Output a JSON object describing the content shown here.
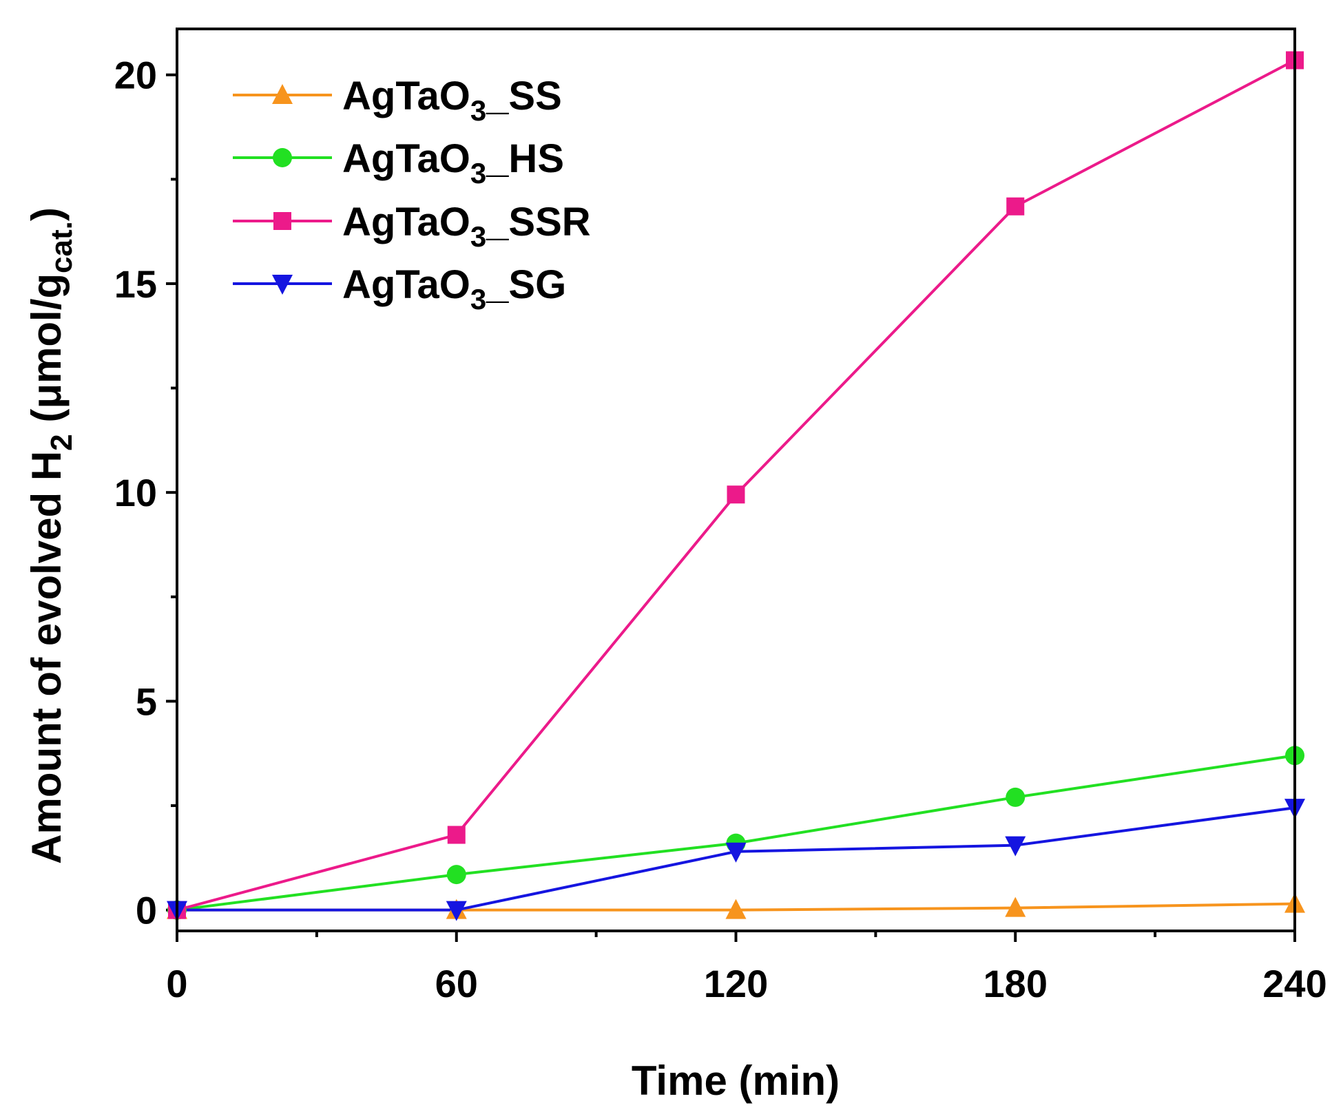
{
  "chart_data": {
    "type": "line",
    "title": "",
    "xlabel": "Time (min)",
    "ylabel": {
      "main": "Amount of evolved H",
      "main_sub": "2",
      "unit_open": " (μmol/g",
      "unit_sub": "cat.",
      "unit_close": ")"
    },
    "xlim": [
      0,
      240
    ],
    "ylim": [
      -0.5,
      21.1
    ],
    "xticks": [
      0,
      60,
      120,
      180,
      240
    ],
    "yticks": [
      0,
      5,
      10,
      15,
      20
    ],
    "xtick_labels": [
      "0",
      "60",
      "120",
      "180",
      "240"
    ],
    "ytick_labels": [
      "0",
      "5",
      "10",
      "15",
      "20"
    ],
    "x": [
      0,
      60,
      120,
      180,
      240
    ],
    "legend_position": "top-left",
    "series": [
      {
        "name": "AgTaO3_SS",
        "label": {
          "pre": "AgTaO",
          "sub": "3",
          "post": "_SS"
        },
        "color": "#f7941d",
        "marker": "triangle-up",
        "values": [
          0,
          0,
          0,
          0.05,
          0.15
        ]
      },
      {
        "name": "AgTaO3_HS",
        "label": {
          "pre": "AgTaO",
          "sub": "3",
          "post": "_HS"
        },
        "color": "#22e022",
        "marker": "circle",
        "values": [
          0,
          0.85,
          1.6,
          2.7,
          3.7
        ]
      },
      {
        "name": "AgTaO3_SSR",
        "label": {
          "pre": "AgTaO",
          "sub": "3",
          "post": "_SSR"
        },
        "color": "#ec1a8a",
        "marker": "square",
        "values": [
          0,
          1.8,
          9.95,
          16.85,
          20.35
        ]
      },
      {
        "name": "AgTaO3_SG",
        "label": {
          "pre": "AgTaO",
          "sub": "3",
          "post": "_SG"
        },
        "color": "#1515e0",
        "marker": "triangle-down",
        "values": [
          0,
          0,
          1.4,
          1.55,
          2.45
        ]
      }
    ]
  }
}
